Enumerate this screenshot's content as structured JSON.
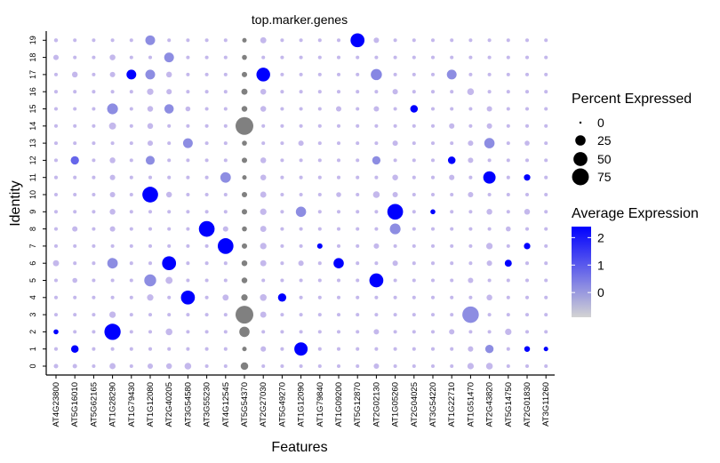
{
  "chart_data": {
    "type": "dotplot",
    "title": "top.marker.genes",
    "xlabel": "Features",
    "ylabel": "Identity",
    "features": [
      "AT4G23800",
      "AT5G16010",
      "AT5G62165",
      "AT1G28290",
      "AT1G79430",
      "AT1G12080",
      "AT2G40205",
      "AT3G54580",
      "AT3G55230",
      "AT4G12545",
      "AT5G54370",
      "AT2G27030",
      "AT5G49270",
      "AT1G12090",
      "AT1G79840",
      "AT1G09200",
      "AT5G12870",
      "AT2G02130",
      "AT1G05260",
      "AT2G04025",
      "AT3G54220",
      "AT1G22710",
      "AT1G51470",
      "AT2G43820",
      "AT5G14750",
      "AT2G01830",
      "AT3G11260"
    ],
    "identities": [
      "0",
      "1",
      "2",
      "3",
      "4",
      "5",
      "6",
      "7",
      "8",
      "9",
      "10",
      "11",
      "12",
      "13",
      "14",
      "15",
      "16",
      "17",
      "18",
      "19"
    ],
    "size_legend": {
      "title": "Percent Expressed",
      "breaks": [
        0,
        25,
        50,
        75
      ]
    },
    "color_legend": {
      "title": "Average Expression",
      "breaks": [
        0,
        1,
        2
      ],
      "range": [
        -0.9,
        2.4
      ],
      "low_color": "#d3d3d3",
      "high_color": "#0000ff"
    },
    "grey_feature": "AT5G54370",
    "points": [
      {
        "f": "AT5G54370",
        "id": "0",
        "pct": 12,
        "avg": null
      },
      {
        "f": "AT5G54370",
        "id": "1",
        "pct": 3,
        "avg": null
      },
      {
        "f": "AT5G54370",
        "id": "2",
        "pct": 25,
        "avg": null
      },
      {
        "f": "AT5G54370",
        "id": "3",
        "pct": 85,
        "avg": null
      },
      {
        "f": "AT5G54370",
        "id": "4",
        "pct": 8,
        "avg": null
      },
      {
        "f": "AT5G54370",
        "id": "5",
        "pct": 6,
        "avg": null
      },
      {
        "f": "AT5G54370",
        "id": "6",
        "pct": 6,
        "avg": null
      },
      {
        "f": "AT5G54370",
        "id": "7",
        "pct": 5,
        "avg": null
      },
      {
        "f": "AT5G54370",
        "id": "8",
        "pct": 4,
        "avg": null
      },
      {
        "f": "AT5G54370",
        "id": "9",
        "pct": 5,
        "avg": null
      },
      {
        "f": "AT5G54370",
        "id": "10",
        "pct": 5,
        "avg": null
      },
      {
        "f": "AT5G54370",
        "id": "11",
        "pct": 3,
        "avg": null
      },
      {
        "f": "AT5G54370",
        "id": "12",
        "pct": 5,
        "avg": null
      },
      {
        "f": "AT5G54370",
        "id": "13",
        "pct": 4,
        "avg": null
      },
      {
        "f": "AT5G54370",
        "id": "14",
        "pct": 85,
        "avg": null
      },
      {
        "f": "AT5G54370",
        "id": "15",
        "pct": 6,
        "avg": null
      },
      {
        "f": "AT5G54370",
        "id": "16",
        "pct": 7,
        "avg": null
      },
      {
        "f": "AT5G54370",
        "id": "17",
        "pct": 5,
        "avg": null
      },
      {
        "f": "AT5G54370",
        "id": "18",
        "pct": 4,
        "avg": null
      },
      {
        "f": "AT5G54370",
        "id": "19",
        "pct": 3,
        "avg": null
      },
      {
        "f": "AT5G12870",
        "id": "19",
        "pct": 50,
        "avg": 2.4
      },
      {
        "f": "AT1G12080",
        "id": "19",
        "pct": 22,
        "avg": 0.2
      },
      {
        "f": "AT2G27030",
        "id": "17",
        "pct": 48,
        "avg": 2.4
      },
      {
        "f": "AT1G79430",
        "id": "17",
        "pct": 22,
        "avg": 2.4
      },
      {
        "f": "AT1G12080",
        "id": "17",
        "pct": 22,
        "avg": 0.2
      },
      {
        "f": "AT2G02130",
        "id": "17",
        "pct": 30,
        "avg": 0.3
      },
      {
        "f": "AT1G22710",
        "id": "17",
        "pct": 22,
        "avg": 0.2
      },
      {
        "f": "AT2G40205",
        "id": "18",
        "pct": 22,
        "avg": 0.2
      },
      {
        "f": "AT2G04025",
        "id": "15",
        "pct": 12,
        "avg": 2.4
      },
      {
        "f": "AT1G28290",
        "id": "15",
        "pct": 28,
        "avg": 0.2
      },
      {
        "f": "AT2G40205",
        "id": "15",
        "pct": 20,
        "avg": 0.2
      },
      {
        "f": "AT3G54580",
        "id": "13",
        "pct": 22,
        "avg": 0.2
      },
      {
        "f": "AT2G43820",
        "id": "13",
        "pct": 25,
        "avg": 0.2
      },
      {
        "f": "AT5G16010",
        "id": "12",
        "pct": 15,
        "avg": 0.8
      },
      {
        "f": "AT1G22710",
        "id": "12",
        "pct": 12,
        "avg": 2.4
      },
      {
        "f": "AT1G12080",
        "id": "12",
        "pct": 18,
        "avg": 0.2
      },
      {
        "f": "AT2G02130",
        "id": "12",
        "pct": 15,
        "avg": 0.2
      },
      {
        "f": "AT2G43820",
        "id": "11",
        "pct": 38,
        "avg": 2.4
      },
      {
        "f": "AT4G12545",
        "id": "11",
        "pct": 26,
        "avg": 0.2
      },
      {
        "f": "AT1G12080",
        "id": "10",
        "pct": 65,
        "avg": 2.4
      },
      {
        "f": "AT1G05260",
        "id": "9",
        "pct": 65,
        "avg": 2.4
      },
      {
        "f": "AT1G12090",
        "id": "9",
        "pct": 25,
        "avg": 0.2
      },
      {
        "f": "AT3G55230",
        "id": "8",
        "pct": 65,
        "avg": 2.4
      },
      {
        "f": "AT1G05260",
        "id": "8",
        "pct": 28,
        "avg": 0.2
      },
      {
        "f": "AT4G12545",
        "id": "7",
        "pct": 65,
        "avg": 2.4
      },
      {
        "f": "AT2G40205",
        "id": "6",
        "pct": 50,
        "avg": 2.4
      },
      {
        "f": "AT1G09200",
        "id": "6",
        "pct": 25,
        "avg": 2.4
      },
      {
        "f": "AT5G14750",
        "id": "6",
        "pct": 10,
        "avg": 2.4
      },
      {
        "f": "AT1G28290",
        "id": "6",
        "pct": 26,
        "avg": 0.2
      },
      {
        "f": "AT2G02130",
        "id": "5",
        "pct": 50,
        "avg": 2.4
      },
      {
        "f": "AT1G12080",
        "id": "5",
        "pct": 35,
        "avg": 0.2
      },
      {
        "f": "AT3G54580",
        "id": "4",
        "pct": 50,
        "avg": 2.4
      },
      {
        "f": "AT5G49270",
        "id": "4",
        "pct": 15,
        "avg": 2.4
      },
      {
        "f": "AT1G51470",
        "id": "3",
        "pct": 72,
        "avg": 0.2
      },
      {
        "f": "AT1G28290",
        "id": "2",
        "pct": 70,
        "avg": 2.4
      },
      {
        "f": "AT1G12090",
        "id": "1",
        "pct": 45,
        "avg": 2.4
      },
      {
        "f": "AT5G16010",
        "id": "1",
        "pct": 12,
        "avg": 2.4
      },
      {
        "f": "AT2G43820",
        "id": "1",
        "pct": 15,
        "avg": 0.2
      },
      {
        "f": "AT2G01830",
        "id": "11",
        "pct": 8,
        "avg": 2.4
      },
      {
        "f": "AT2G01830",
        "id": "7",
        "pct": 8,
        "avg": 2.4
      },
      {
        "f": "AT1G79840",
        "id": "7",
        "pct": 5,
        "avg": 2.4
      },
      {
        "f": "AT2G01830",
        "id": "1",
        "pct": 6,
        "avg": 2.4
      },
      {
        "f": "AT3G11260",
        "id": "1",
        "pct": 3,
        "avg": 2.4
      },
      {
        "f": "AT4G23800",
        "id": "2",
        "pct": 4,
        "avg": 2.4
      },
      {
        "f": "AT3G54220",
        "id": "9",
        "pct": 4,
        "avg": 2.4
      }
    ],
    "background_points": [
      {
        "f": "AT4G23800",
        "id": "19",
        "pct": 2
      },
      {
        "f": "AT4G23800",
        "id": "18",
        "pct": 5
      },
      {
        "f": "AT4G23800",
        "id": "6",
        "pct": 7
      },
      {
        "f": "AT4G23800",
        "id": "0",
        "pct": 3
      },
      {
        "f": "AT5G16010",
        "id": "17",
        "pct": 6
      },
      {
        "f": "AT5G16010",
        "id": "8",
        "pct": 5
      },
      {
        "f": "AT5G16010",
        "id": "5",
        "pct": 4
      },
      {
        "f": "AT5G16010",
        "id": "0",
        "pct": 3
      },
      {
        "f": "AT1G28290",
        "id": "18",
        "pct": 6
      },
      {
        "f": "AT1G28290",
        "id": "17",
        "pct": 5
      },
      {
        "f": "AT1G28290",
        "id": "14",
        "pct": 10
      },
      {
        "f": "AT1G28290",
        "id": "12",
        "pct": 6
      },
      {
        "f": "AT1G28290",
        "id": "11",
        "pct": 5
      },
      {
        "f": "AT1G28290",
        "id": "10",
        "pct": 5
      },
      {
        "f": "AT1G28290",
        "id": "9",
        "pct": 6
      },
      {
        "f": "AT1G28290",
        "id": "8",
        "pct": 5
      },
      {
        "f": "AT1G28290",
        "id": "3",
        "pct": 8
      },
      {
        "f": "AT1G28290",
        "id": "0",
        "pct": 7
      },
      {
        "f": "AT1G12080",
        "id": "16",
        "pct": 8
      },
      {
        "f": "AT1G12080",
        "id": "15",
        "pct": 6
      },
      {
        "f": "AT1G12080",
        "id": "14",
        "pct": 6
      },
      {
        "f": "AT1G12080",
        "id": "13",
        "pct": 5
      },
      {
        "f": "AT1G12080",
        "id": "4",
        "pct": 8
      },
      {
        "f": "AT1G12080",
        "id": "0",
        "pct": 5
      },
      {
        "f": "AT2G40205",
        "id": "17",
        "pct": 6
      },
      {
        "f": "AT2G40205",
        "id": "16",
        "pct": 5
      },
      {
        "f": "AT2G40205",
        "id": "10",
        "pct": 6
      },
      {
        "f": "AT2G40205",
        "id": "5",
        "pct": 10
      },
      {
        "f": "AT2G40205",
        "id": "2",
        "pct": 9
      },
      {
        "f": "AT2G40205",
        "id": "0",
        "pct": 6
      },
      {
        "f": "AT3G54580",
        "id": "0",
        "pct": 9
      },
      {
        "f": "AT3G54580",
        "id": "15",
        "pct": 4
      },
      {
        "f": "AT4G12545",
        "id": "4",
        "pct": 7
      },
      {
        "f": "AT4G12545",
        "id": "8",
        "pct": 5
      },
      {
        "f": "AT2G27030",
        "id": "19",
        "pct": 7
      },
      {
        "f": "AT2G27030",
        "id": "16",
        "pct": 6
      },
      {
        "f": "AT2G27030",
        "id": "15",
        "pct": 6
      },
      {
        "f": "AT2G27030",
        "id": "12",
        "pct": 6
      },
      {
        "f": "AT2G27030",
        "id": "11",
        "pct": 6
      },
      {
        "f": "AT2G27030",
        "id": "10",
        "pct": 7
      },
      {
        "f": "AT2G27030",
        "id": "9",
        "pct": 8
      },
      {
        "f": "AT2G27030",
        "id": "8",
        "pct": 7
      },
      {
        "f": "AT2G27030",
        "id": "7",
        "pct": 8
      },
      {
        "f": "AT2G27030",
        "id": "6",
        "pct": 7
      },
      {
        "f": "AT2G27030",
        "id": "4",
        "pct": 9
      },
      {
        "f": "AT2G27030",
        "id": "3",
        "pct": 7
      },
      {
        "f": "AT2G27030",
        "id": "1",
        "pct": 5
      },
      {
        "f": "AT1G12090",
        "id": "13",
        "pct": 5
      },
      {
        "f": "AT1G12090",
        "id": "6",
        "pct": 5
      },
      {
        "f": "AT1G09200",
        "id": "15",
        "pct": 5
      },
      {
        "f": "AT1G09200",
        "id": "10",
        "pct": 4
      },
      {
        "f": "AT2G02130",
        "id": "19",
        "pct": 5
      },
      {
        "f": "AT2G02130",
        "id": "15",
        "pct": 5
      },
      {
        "f": "AT2G02130",
        "id": "10",
        "pct": 9
      },
      {
        "f": "AT2G02130",
        "id": "7",
        "pct": 5
      },
      {
        "f": "AT2G02130",
        "id": "2",
        "pct": 5
      },
      {
        "f": "AT2G02130",
        "id": "0",
        "pct": 5
      },
      {
        "f": "AT1G05260",
        "id": "16",
        "pct": 5
      },
      {
        "f": "AT1G05260",
        "id": "13",
        "pct": 5
      },
      {
        "f": "AT1G05260",
        "id": "11",
        "pct": 6
      },
      {
        "f": "AT1G05260",
        "id": "10",
        "pct": 5
      },
      {
        "f": "AT1G05260",
        "id": "6",
        "pct": 5
      },
      {
        "f": "AT1G22710",
        "id": "14",
        "pct": 5
      },
      {
        "f": "AT1G22710",
        "id": "11",
        "pct": 5
      },
      {
        "f": "AT1G22710",
        "id": "2",
        "pct": 5
      },
      {
        "f": "AT1G51470",
        "id": "16",
        "pct": 9
      },
      {
        "f": "AT1G51470",
        "id": "13",
        "pct": 5
      },
      {
        "f": "AT1G51470",
        "id": "12",
        "pct": 5
      },
      {
        "f": "AT1G51470",
        "id": "10",
        "pct": 5
      },
      {
        "f": "AT1G51470",
        "id": "5",
        "pct": 5
      },
      {
        "f": "AT1G51470",
        "id": "1",
        "pct": 5
      },
      {
        "f": "AT1G51470",
        "id": "0",
        "pct": 8
      },
      {
        "f": "AT2G43820",
        "id": "15",
        "pct": 5
      },
      {
        "f": "AT2G43820",
        "id": "14",
        "pct": 5
      },
      {
        "f": "AT2G43820",
        "id": "9",
        "pct": 6
      },
      {
        "f": "AT2G43820",
        "id": "7",
        "pct": 8
      },
      {
        "f": "AT2G43820",
        "id": "6",
        "pct": 5
      },
      {
        "f": "AT2G43820",
        "id": "4",
        "pct": 6
      },
      {
        "f": "AT2G43820",
        "id": "0",
        "pct": 9
      },
      {
        "f": "AT5G14750",
        "id": "2",
        "pct": 8
      },
      {
        "f": "AT5G14750",
        "id": "8",
        "pct": 4
      },
      {
        "f": "AT2G01830",
        "id": "9",
        "pct": 6
      },
      {
        "f": "AT2G01830",
        "id": "13",
        "pct": 4
      }
    ]
  }
}
